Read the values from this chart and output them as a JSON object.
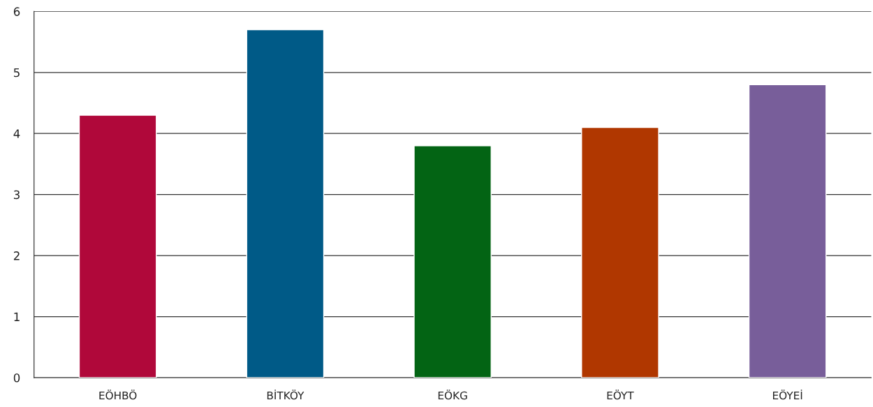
{
  "chart_data": {
    "type": "bar",
    "categories": [
      "EÖHBÖ",
      "BİTKÖY",
      "EÖKG",
      "EÖYT",
      "EÖYEİ"
    ],
    "values": [
      4.3,
      5.7,
      3.8,
      4.1,
      4.8
    ],
    "colors": [
      "#b0083a",
      "#005a87",
      "#036414",
      "#b03700",
      "#785e9a"
    ],
    "ylim": [
      0,
      6
    ],
    "yticks": [
      0,
      1,
      2,
      3,
      4,
      5,
      6
    ],
    "grid": "y"
  }
}
